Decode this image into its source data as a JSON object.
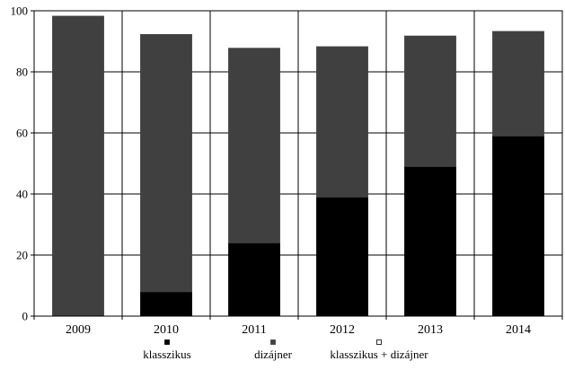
{
  "chart_data": {
    "type": "bar",
    "stacked": true,
    "categories": [
      "2009",
      "2010",
      "2011",
      "2012",
      "2013",
      "2014"
    ],
    "series": [
      {
        "name": "klasszikus",
        "values": [
          0,
          8,
          24,
          39,
          49,
          59
        ],
        "color": "#000000"
      },
      {
        "name": "dizájner",
        "values": [
          98.5,
          84.5,
          64,
          49.5,
          43,
          34.5
        ],
        "color": "#404040"
      },
      {
        "name": "klasszikus + dizájner",
        "values": [
          1.5,
          7.5,
          12,
          11.5,
          8,
          6.5
        ],
        "color": "#ffffff"
      }
    ],
    "yticks": [
      "0",
      "20",
      "40",
      "60",
      "80",
      "100"
    ],
    "ylim": [
      0,
      100
    ],
    "grid": true,
    "legend_position": "bottom"
  }
}
